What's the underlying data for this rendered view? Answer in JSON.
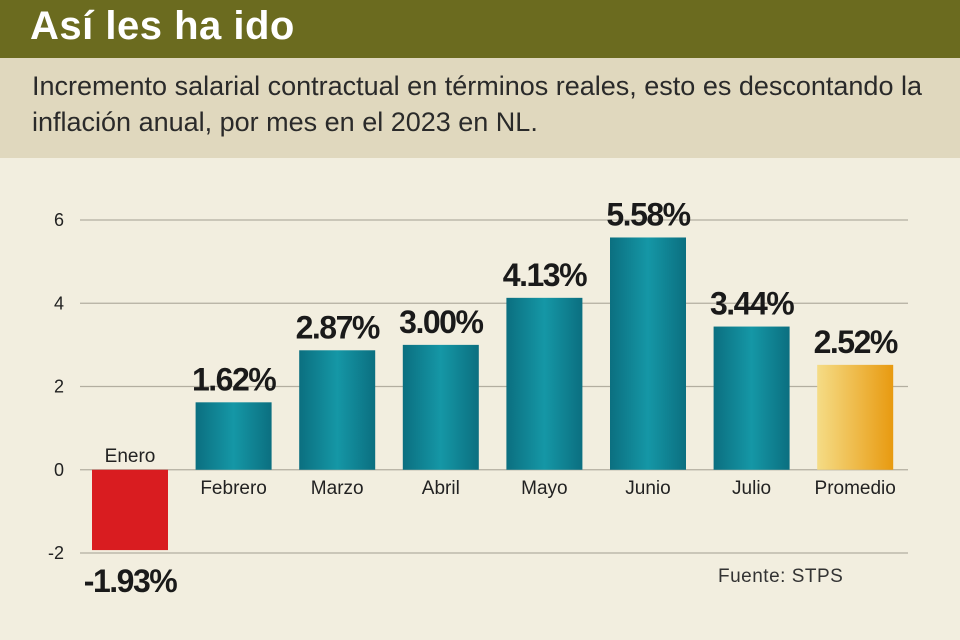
{
  "header": {
    "title": "Así les ha ido",
    "subtitle": "Incremento salarial contractual en términos reales, esto es descontando la inflación anual, por mes en el 2023 en NL."
  },
  "source": "Fuente: STPS",
  "colors": {
    "positive": "#0f8191",
    "negative": "#d91c20",
    "average": "#eea81a",
    "header": "#6b6b1f"
  },
  "chart_data": {
    "type": "bar",
    "title": "Así les ha ido",
    "categories": [
      "Enero",
      "Febrero",
      "Marzo",
      "Abril",
      "Mayo",
      "Junio",
      "Julio",
      "Promedio"
    ],
    "values": [
      -1.93,
      1.62,
      2.87,
      3.0,
      4.13,
      5.58,
      3.44,
      2.52
    ],
    "labels": [
      "-1.93%",
      "1.62%",
      "2.87%",
      "3.00%",
      "4.13%",
      "5.58%",
      "3.44%",
      "2.52%"
    ],
    "yticks": [
      -2,
      0,
      2,
      4,
      6
    ],
    "ytick_labels": [
      "-2",
      "0",
      "2",
      "4",
      "6"
    ],
    "ylim": [
      -2,
      6
    ],
    "grid": true,
    "xlabel": "",
    "ylabel": ""
  }
}
